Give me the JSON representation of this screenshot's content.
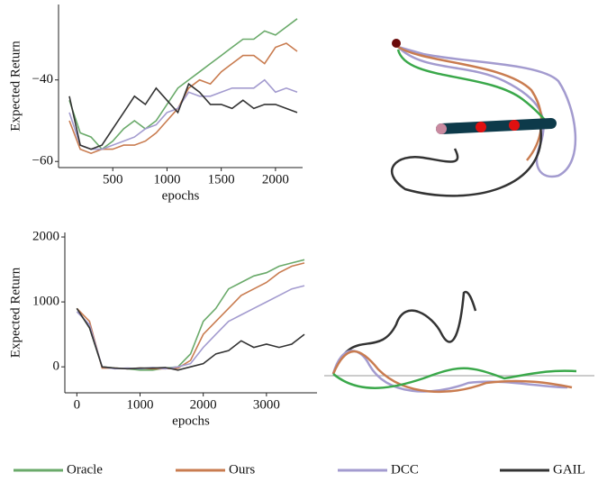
{
  "chart_data": [
    {
      "type": "line",
      "ylabel": "Expected Return",
      "xlabel": "epochs",
      "x": [
        100,
        200,
        300,
        400,
        500,
        600,
        700,
        800,
        900,
        1000,
        1100,
        1200,
        1300,
        1400,
        1500,
        1600,
        1700,
        1800,
        1900,
        2000,
        2100,
        2200
      ],
      "xlim": [
        0,
        2250
      ],
      "xticks": [
        500,
        1000,
        1500,
        2000
      ],
      "ylim": [
        -61.5,
        -21.5
      ],
      "yticks": [
        {
          "value": -40,
          "label": "−40"
        },
        {
          "value": -60,
          "label": "−60"
        }
      ],
      "series": [
        {
          "name": "Oracle",
          "color": "#6aaa6a",
          "values": [
            -45,
            -53,
            -54,
            -57,
            -55,
            -52,
            -50,
            -52,
            -50,
            -46,
            -42,
            -40,
            -38,
            -36,
            -34,
            -32,
            -30,
            -30,
            -28,
            -29,
            -27,
            -25
          ]
        },
        {
          "name": "Ours",
          "color": "#c97c50",
          "values": [
            -50,
            -57,
            -58,
            -57,
            -57,
            -56,
            -56,
            -55,
            -53,
            -50,
            -47,
            -42,
            -40,
            -41,
            -38,
            -36,
            -34,
            -34,
            -36,
            -32,
            -31,
            -33
          ]
        },
        {
          "name": "DCC",
          "color": "#a39bcf",
          "values": [
            -48,
            -56,
            -57,
            -57,
            -56,
            -55,
            -54,
            -52,
            -51,
            -48,
            -47,
            -43,
            -44,
            -44,
            -43,
            -42,
            -42,
            -42,
            -40,
            -43,
            -42,
            -43
          ]
        },
        {
          "name": "GAIL",
          "color": "#333333",
          "values": [
            -44,
            -56,
            -57,
            -56,
            -52,
            -48,
            -44,
            -46,
            -42,
            -45,
            -48,
            -41,
            -43,
            -46,
            -46,
            -47,
            -45,
            -47,
            -46,
            -46,
            -47,
            -48
          ]
        }
      ]
    },
    {
      "type": "line",
      "ylabel": "Expected Return",
      "xlabel": "epochs",
      "x": [
        0,
        200,
        400,
        600,
        800,
        1000,
        1200,
        1400,
        1600,
        1800,
        2000,
        2200,
        2400,
        2600,
        2800,
        3000,
        3200,
        3400,
        3600
      ],
      "xlim": [
        -190,
        3800
      ],
      "xticks": [
        0,
        1000,
        2000,
        3000
      ],
      "ylim": [
        -400,
        2070
      ],
      "yticks": [
        0,
        1000,
        2000
      ],
      "series": [
        {
          "name": "Oracle",
          "color": "#6aaa6a",
          "values": [
            900,
            600,
            0,
            -20,
            -30,
            -50,
            -50,
            -20,
            0,
            200,
            700,
            900,
            1200,
            1300,
            1400,
            1450,
            1550,
            1600,
            1650
          ]
        },
        {
          "name": "Ours",
          "color": "#c97c50",
          "values": [
            900,
            700,
            -20,
            -20,
            -30,
            -20,
            -30,
            -30,
            -20,
            100,
            500,
            700,
            900,
            1100,
            1200,
            1300,
            1450,
            1550,
            1600
          ]
        },
        {
          "name": "DCC",
          "color": "#a39bcf",
          "values": [
            850,
            650,
            0,
            -30,
            -20,
            -30,
            -10,
            -30,
            0,
            50,
            300,
            500,
            700,
            800,
            900,
            1000,
            1100,
            1200,
            1250
          ]
        },
        {
          "name": "GAIL",
          "color": "#333333",
          "values": [
            900,
            600,
            0,
            -20,
            -30,
            -20,
            -20,
            -10,
            -50,
            0,
            50,
            200,
            250,
            400,
            300,
            350,
            300,
            350,
            500
          ]
        }
      ]
    }
  ]
}
